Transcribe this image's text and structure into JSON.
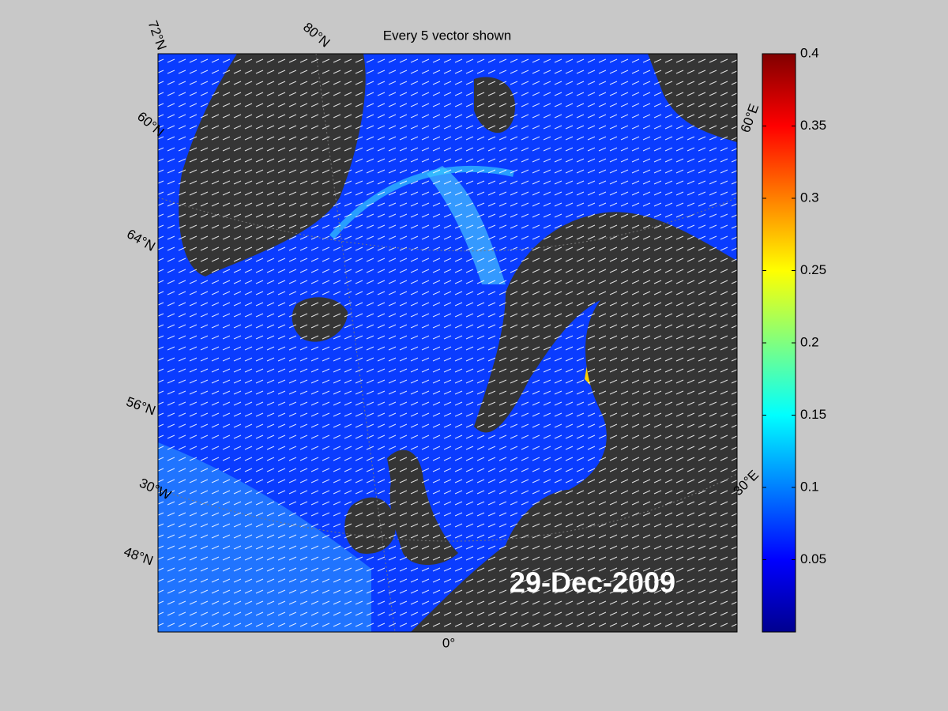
{
  "map": {
    "title": "Every 5 vector shown",
    "date": "29-Dec-2009",
    "graticule_labels": [
      "72°N",
      "80°N",
      "60°N",
      "64°N",
      "56°N",
      "30°W",
      "48°N",
      "0°",
      "30°E",
      "60°E"
    ],
    "colorbar": {
      "lim": [
        0,
        0.4
      ],
      "ticks": [
        0.05,
        0.1,
        0.15,
        0.2,
        0.25,
        0.3,
        0.35,
        0.4
      ],
      "colormap": "jet"
    }
  }
}
